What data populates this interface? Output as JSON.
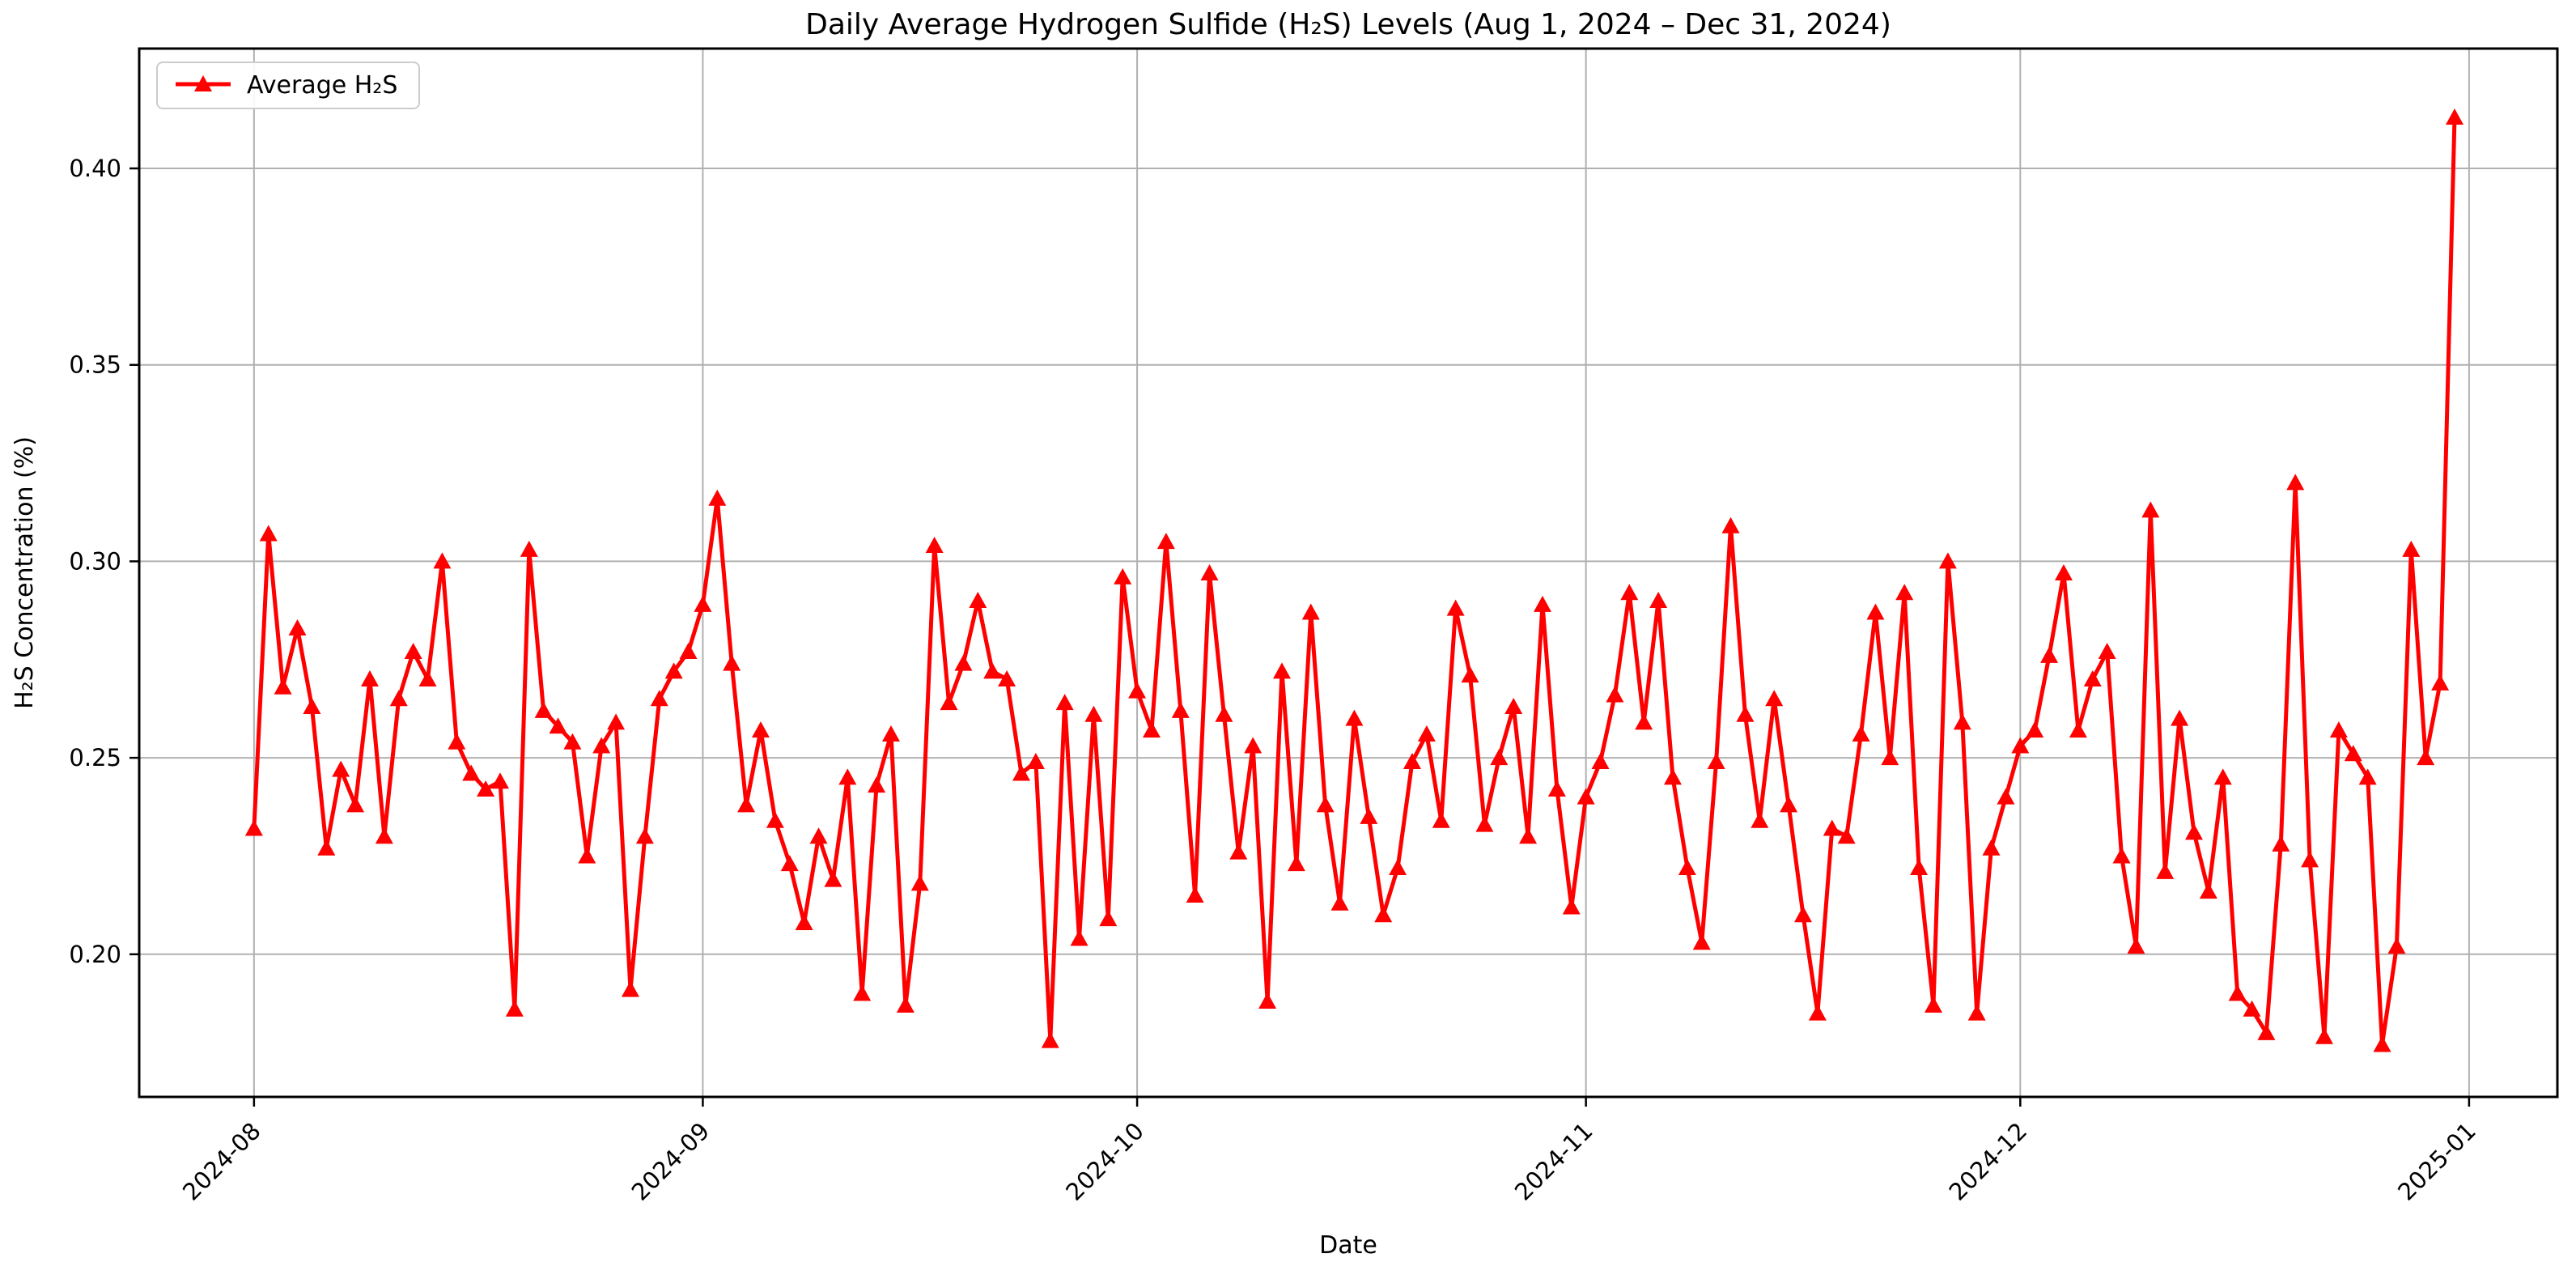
{
  "title": "Daily Average Hydrogen Sulfide (H₂S) Levels (Aug 1, 2024 – Dec 31, 2024)",
  "xlabel": "Date",
  "ylabel": "H₂S Concentration (%)",
  "legend": {
    "label": "Average H₂S",
    "position": "upper-left"
  },
  "colors": {
    "series": "#ff0000",
    "grid": "#b0b0b0",
    "spine": "#000000",
    "background": "#ffffff"
  },
  "chart_data": {
    "type": "line",
    "series_name": "Average H₂S",
    "marker": "triangle-up",
    "grid": true,
    "start_date": "2024-08-01",
    "end_date": "2024-12-31",
    "x_tick_labels": [
      "2024-08",
      "2024-09",
      "2024-10",
      "2024-11",
      "2024-12",
      "2025-01"
    ],
    "x_tick_day_offsets": [
      0,
      31,
      61,
      92,
      122,
      153
    ],
    "y_ticks": [
      0.2,
      0.25,
      0.3,
      0.35,
      0.4
    ],
    "ylim": [
      0.1637,
      0.4305
    ],
    "xlim_days": [
      -7.93,
      159.1
    ],
    "values": [
      0.232,
      0.307,
      0.268,
      0.283,
      0.263,
      0.227,
      0.247,
      0.238,
      0.27,
      0.23,
      0.265,
      0.277,
      0.27,
      0.3,
      0.254,
      0.246,
      0.242,
      0.244,
      0.186,
      0.303,
      0.262,
      0.258,
      0.254,
      0.225,
      0.253,
      0.259,
      0.191,
      0.23,
      0.265,
      0.272,
      0.277,
      0.289,
      0.316,
      0.274,
      0.238,
      0.257,
      0.234,
      0.223,
      0.208,
      0.23,
      0.219,
      0.245,
      0.19,
      0.243,
      0.256,
      0.187,
      0.218,
      0.304,
      0.264,
      0.274,
      0.29,
      0.272,
      0.27,
      0.246,
      0.249,
      0.178,
      0.264,
      0.204,
      0.261,
      0.209,
      0.296,
      0.267,
      0.257,
      0.305,
      0.262,
      0.215,
      0.297,
      0.261,
      0.226,
      0.253,
      0.188,
      0.272,
      0.223,
      0.287,
      0.238,
      0.213,
      0.26,
      0.235,
      0.21,
      0.222,
      0.249,
      0.256,
      0.234,
      0.288,
      0.271,
      0.233,
      0.25,
      0.263,
      0.23,
      0.289,
      0.242,
      0.212,
      0.24,
      0.249,
      0.266,
      0.292,
      0.259,
      0.29,
      0.245,
      0.222,
      0.203,
      0.249,
      0.309,
      0.261,
      0.234,
      0.265,
      0.238,
      0.21,
      0.185,
      0.232,
      0.23,
      0.256,
      0.287,
      0.25,
      0.292,
      0.222,
      0.187,
      0.3,
      0.259,
      0.185,
      0.227,
      0.24,
      0.253,
      0.257,
      0.276,
      0.297,
      0.257,
      0.27,
      0.277,
      0.225,
      0.202,
      0.313,
      0.221,
      0.26,
      0.231,
      0.216,
      0.245,
      0.19,
      0.186,
      0.18,
      0.228,
      0.32,
      0.224,
      0.179,
      0.257,
      0.251,
      0.245,
      0.177,
      0.202,
      0.303,
      0.25,
      0.269,
      0.413
    ]
  }
}
